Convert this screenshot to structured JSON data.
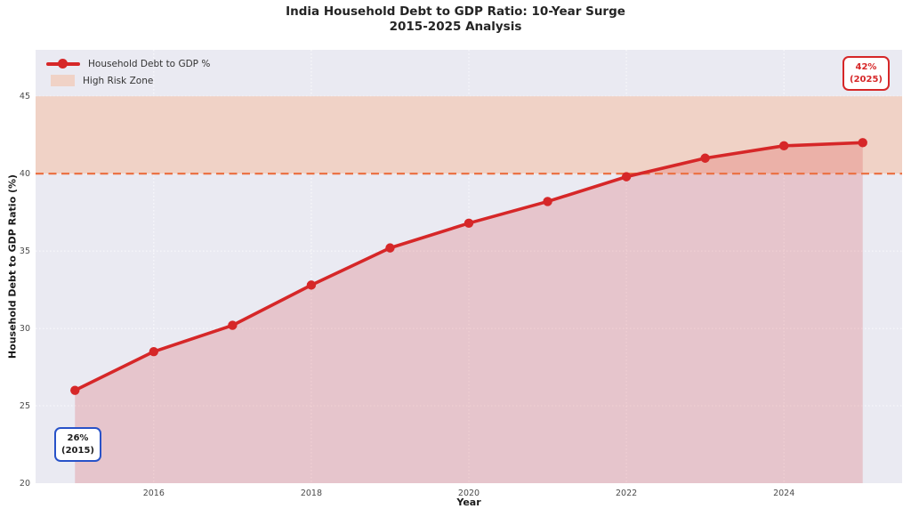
{
  "title": {
    "line1": "India Household Debt to GDP Ratio: 10-Year Surge",
    "line2": "2015-2025 Analysis"
  },
  "legend": {
    "series_label": "Household Debt to GDP %",
    "zone_label": "High Risk Zone"
  },
  "annotations": {
    "start": {
      "line1": "26%",
      "line2": "(2015)"
    },
    "end": {
      "line1": "42%",
      "line2": "(2025)"
    }
  },
  "chart_data": {
    "type": "line",
    "title": "India Household Debt to GDP Ratio: 10-Year Surge 2015-2025 Analysis",
    "xlabel": "Year",
    "ylabel": "Household Debt to GDP Ratio (%)",
    "series": [
      {
        "name": "Household Debt to GDP %",
        "x": [
          2015,
          2016,
          2017,
          2018,
          2019,
          2020,
          2021,
          2022,
          2023,
          2024,
          2025
        ],
        "values": [
          26.0,
          28.5,
          30.2,
          32.8,
          35.2,
          36.8,
          38.2,
          39.8,
          41.0,
          41.8,
          42.0
        ]
      }
    ],
    "high_risk_zone": {
      "label": "High Risk Zone",
      "from": 40,
      "to": 45
    },
    "threshold_line": 40,
    "xticks": [
      2016,
      2018,
      2020,
      2022,
      2024
    ],
    "yticks": [
      20,
      25,
      30,
      35,
      40,
      45
    ],
    "xlim": [
      2014.5,
      2025.5
    ],
    "ylim": [
      20,
      48
    ],
    "grid": true,
    "legend_position": "upper-left",
    "colors": {
      "line": "#d62728",
      "area_fill": "#d62728",
      "zone": "#f0d2c6",
      "threshold": "#eb7346",
      "plot_bg": "#eaeaf2",
      "grid": "#ffffff",
      "annotation_start_border": "#2852c8",
      "annotation_end_border": "#d62728"
    }
  }
}
